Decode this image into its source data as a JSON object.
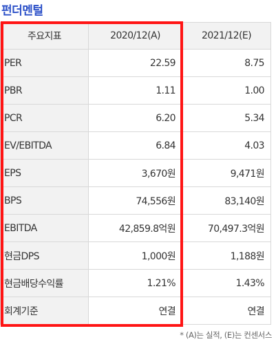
{
  "title": "펀더멘털",
  "table": {
    "headers": [
      "주요지표",
      "2020/12(A)",
      "2021/12(E)"
    ],
    "rows": [
      {
        "label": "PER",
        "a": "22.59",
        "e": "8.75"
      },
      {
        "label": "PBR",
        "a": "1.11",
        "e": "1.00"
      },
      {
        "label": "PCR",
        "a": "6.20",
        "e": "5.34"
      },
      {
        "label": "EV/EBITDA",
        "a": "6.84",
        "e": "4.03"
      },
      {
        "label": "EPS",
        "a": "3,670원",
        "e": "9,471원"
      },
      {
        "label": "BPS",
        "a": "74,556원",
        "e": "83,140원"
      },
      {
        "label": "EBITDA",
        "a": "42,859.8억원",
        "e": "70,497.3억원"
      },
      {
        "label": "현금DPS",
        "a": "1,000원",
        "e": "1,188원"
      },
      {
        "label": "현금배당수익률",
        "a": "1.21%",
        "e": "1.43%"
      },
      {
        "label": "회계기준",
        "a": "연결",
        "e": "연결"
      }
    ]
  },
  "footnote": "* (A)는 실적, (E)는 컨센서스",
  "colors": {
    "title": "#2b50c8",
    "highlight_border": "#ff1414",
    "header_bg": "#f2f2f2"
  }
}
